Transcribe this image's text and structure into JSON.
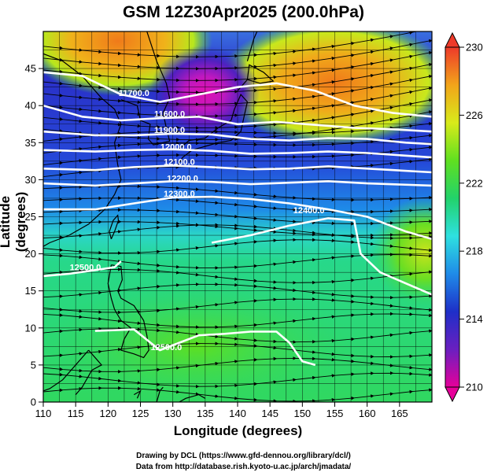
{
  "title": "GSM 12Z30Apr2025 (200.0hPa)",
  "xlabel": "Longitude (degrees)",
  "ylabel": "Latitude  (degrees)",
  "credits": [
    "Drawing by DCL (https://www.gfd-dennou.org/library/dcl/)",
    "Data from http://database.rish.kyoto-u.ac.jp/arch/jmadata/"
  ],
  "chart_data": {
    "type": "heatmap",
    "xlim": [
      110,
      170
    ],
    "ylim": [
      0,
      50
    ],
    "x_ticks": [
      "110",
      "115",
      "120",
      "125",
      "130",
      "135",
      "140",
      "145",
      "150",
      "155",
      "160",
      "165"
    ],
    "y_ticks": [
      "0",
      "5",
      "10",
      "15",
      "20",
      "25",
      "30",
      "35",
      "40",
      "45"
    ],
    "colorbar": {
      "min": 210,
      "max": 230,
      "ticks": [
        "210",
        "214",
        "218",
        "222",
        "226",
        "230"
      ],
      "stops": [
        "#e6009a",
        "#6a1fc0",
        "#1e2fc8",
        "#1f8be8",
        "#2ee0e0",
        "#22d26a",
        "#60e020",
        "#d8ea1a",
        "#f2a41a",
        "#ee3a2a"
      ]
    },
    "contour_labels": [
      {
        "text": "11700.0",
        "lon": 124.0,
        "lat": 41.3
      },
      {
        "text": "11600.0",
        "lon": 129.5,
        "lat": 38.5
      },
      {
        "text": "11900.0",
        "lon": 129.5,
        "lat": 36.3
      },
      {
        "text": "12000.0",
        "lon": 130.5,
        "lat": 34.0
      },
      {
        "text": "12100.0",
        "lon": 131.0,
        "lat": 32.0
      },
      {
        "text": "12200.0",
        "lon": 131.5,
        "lat": 29.8
      },
      {
        "text": "12300.0",
        "lon": 131.0,
        "lat": 27.7
      },
      {
        "text": "12400.0",
        "lon": 151.0,
        "lat": 25.5
      },
      {
        "text": "12500.0",
        "lon": 116.5,
        "lat": 17.8
      },
      {
        "text": "12500.0",
        "lon": 129.0,
        "lat": 7.0
      }
    ]
  }
}
